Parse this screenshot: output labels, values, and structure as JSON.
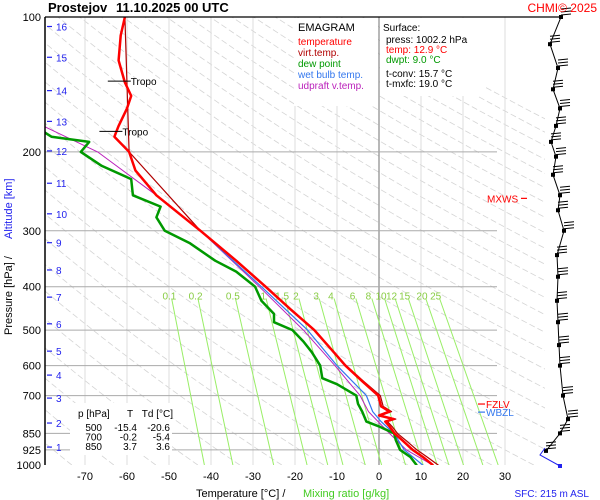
{
  "header": {
    "station": "Prostejov",
    "datetime": "11.10.2025 00 UTC",
    "copyright": "CHMI© 2025"
  },
  "legend": {
    "title": "EMAGRAM",
    "items": [
      {
        "label": "temperature",
        "color": "#ff0000"
      },
      {
        "label": "virt.temp.",
        "color": "#b00000"
      },
      {
        "label": "dew point",
        "color": "#009900"
      },
      {
        "label": "wet bulb temp.",
        "color": "#3377ee"
      },
      {
        "label": "udpraft v.temp.",
        "color": "#bb22bb"
      }
    ]
  },
  "surface": {
    "title": "Surface:",
    "press": "press: 1002.2 hPa",
    "temp": "temp: 12.9 °C",
    "dwpt": "dwpt: 9.0 °C",
    "tconv": "t-conv: 15.7 °C",
    "tmxfc": "t-mxfc: 19.0 °C"
  },
  "table": {
    "headers": [
      "p [hPa]",
      "T",
      "Td [°C]"
    ],
    "rows": [
      [
        "500",
        "-15.4",
        "-20.6"
      ],
      [
        "700",
        "-0.2",
        "-5.4"
      ],
      [
        "850",
        "3.7",
        "3.6"
      ]
    ]
  },
  "axes": {
    "xlabel": "Temperature [°C]  /",
    "xlabel2": "Mixing ratio [g/kg]",
    "ylabel": "Pressure [hPa]  /",
    "ylabel2": "Altitude [km]",
    "sfc": "SFC: 215 m ASL"
  },
  "markers": [
    {
      "label": "MXWS",
      "p": 254,
      "color": "#ff0000"
    },
    {
      "label": "FZLV",
      "p": 731,
      "color": "#ff0000"
    },
    {
      "label": "WBZL",
      "p": 762,
      "color": "#3377ee"
    }
  ],
  "tropo": [
    {
      "label": "Tropo",
      "p": 180,
      "T": -63
    },
    {
      "label": "Tropo",
      "p": 139,
      "T": -61
    }
  ],
  "chart_data": {
    "type": "line",
    "title": "EMAGRAM",
    "xlabel": "Temperature [°C]",
    "ylabel": "Pressure [hPa]",
    "xlim": [
      -80,
      40
    ],
    "ylim": [
      1000,
      100
    ],
    "xticks": [
      -70,
      -60,
      -50,
      -40,
      -30,
      -20,
      -10,
      0,
      10,
      20,
      30
    ],
    "yticks": [
      100,
      200,
      300,
      400,
      500,
      600,
      700,
      850,
      925,
      1000
    ],
    "altitude_ticks": [
      {
        "km": 1,
        "p": 912
      },
      {
        "km": 2,
        "p": 806
      },
      {
        "km": 3,
        "p": 709
      },
      {
        "km": 4,
        "p": 630
      },
      {
        "km": 5,
        "p": 557
      },
      {
        "km": 6,
        "p": 484
      },
      {
        "km": 7,
        "p": 422
      },
      {
        "km": 8,
        "p": 367
      },
      {
        "km": 9,
        "p": 319
      },
      {
        "km": 10,
        "p": 275
      },
      {
        "km": 11,
        "p": 235
      },
      {
        "km": 12,
        "p": 199
      },
      {
        "km": 13,
        "p": 171
      },
      {
        "km": 14,
        "p": 146
      },
      {
        "km": 15,
        "p": 123
      },
      {
        "km": 16,
        "p": 105
      }
    ],
    "mixing_ratios": [
      "0.1",
      "0.2",
      "0.5",
      "1",
      "1.5",
      "2",
      "3",
      "4",
      "6",
      "8",
      "10",
      "12",
      "15",
      "20",
      "25"
    ],
    "series": [
      {
        "name": "temperature",
        "color": "#ff0000",
        "points": [
          [
            1002,
            12.9
          ],
          [
            960,
            10.5
          ],
          [
            925,
            8
          ],
          [
            880,
            5.5
          ],
          [
            850,
            3.7
          ],
          [
            820,
            2.5
          ],
          [
            800,
            1.5
          ],
          [
            790,
            3.5
          ],
          [
            775,
            0
          ],
          [
            760,
            2.5
          ],
          [
            740,
            0.5
          ],
          [
            700,
            -0.2
          ],
          [
            650,
            -4
          ],
          [
            600,
            -8
          ],
          [
            550,
            -11.5
          ],
          [
            500,
            -15.4
          ],
          [
            450,
            -21
          ],
          [
            400,
            -27
          ],
          [
            350,
            -34
          ],
          [
            300,
            -42.5
          ],
          [
            250,
            -53
          ],
          [
            220,
            -58
          ],
          [
            200,
            -59.5
          ],
          [
            185,
            -63
          ],
          [
            175,
            -62
          ],
          [
            160,
            -60
          ],
          [
            150,
            -59
          ],
          [
            140,
            -60.5
          ],
          [
            125,
            -62
          ],
          [
            110,
            -61.5
          ],
          [
            100,
            -60.5
          ]
        ]
      },
      {
        "name": "virt.temp.",
        "color": "#b00000",
        "points": [
          [
            1002,
            14.2
          ],
          [
            960,
            11.5
          ],
          [
            925,
            9
          ],
          [
            880,
            6.3
          ],
          [
            850,
            4.4
          ],
          [
            820,
            3.1
          ],
          [
            800,
            2
          ],
          [
            790,
            4
          ],
          [
            775,
            0.5
          ],
          [
            760,
            3
          ],
          [
            740,
            1
          ],
          [
            700,
            0.3
          ],
          [
            650,
            -3.7
          ],
          [
            600,
            -7.8
          ],
          [
            500,
            -15.3
          ],
          [
            400,
            -27
          ],
          [
            300,
            -42.5
          ],
          [
            200,
            -59.5
          ],
          [
            100,
            -60.5
          ]
        ]
      },
      {
        "name": "dew point",
        "color": "#009900",
        "points": [
          [
            1002,
            9
          ],
          [
            960,
            7.5
          ],
          [
            925,
            5
          ],
          [
            880,
            4
          ],
          [
            850,
            3.6
          ],
          [
            820,
            0
          ],
          [
            800,
            -3
          ],
          [
            760,
            -4
          ],
          [
            730,
            -5
          ],
          [
            700,
            -5.4
          ],
          [
            660,
            -10
          ],
          [
            640,
            -13.5
          ],
          [
            600,
            -14
          ],
          [
            560,
            -16
          ],
          [
            530,
            -18
          ],
          [
            500,
            -20.6
          ],
          [
            480,
            -25
          ],
          [
            460,
            -25
          ],
          [
            430,
            -28
          ],
          [
            400,
            -29.5
          ],
          [
            370,
            -34
          ],
          [
            350,
            -39
          ],
          [
            320,
            -45
          ],
          [
            300,
            -51
          ],
          [
            280,
            -53
          ],
          [
            265,
            -52
          ],
          [
            250,
            -58.6
          ],
          [
            230,
            -59
          ],
          [
            215,
            -66
          ],
          [
            200,
            -71
          ],
          [
            190,
            -69
          ],
          [
            185,
            -78
          ],
          [
            180,
            -80
          ]
        ]
      },
      {
        "name": "wet bulb temp.",
        "color": "#3377ee",
        "points": [
          [
            1002,
            10.5
          ],
          [
            925,
            6
          ],
          [
            850,
            3.6
          ],
          [
            800,
            0.5
          ],
          [
            760,
            -1.5
          ],
          [
            700,
            -3
          ],
          [
            600,
            -10
          ],
          [
            500,
            -17
          ],
          [
            400,
            -28
          ],
          [
            300,
            -42.5
          ],
          [
            250,
            -53
          ]
        ]
      },
      {
        "name": "udpraft v.temp.",
        "color": "#bb22bb",
        "points": [
          [
            1002,
            12.9
          ],
          [
            925,
            6.5
          ],
          [
            850,
            2.5
          ],
          [
            760,
            -2.5
          ],
          [
            700,
            -4.5
          ],
          [
            600,
            -10.5
          ],
          [
            500,
            -18
          ],
          [
            400,
            -28.5
          ],
          [
            300,
            -42.5
          ],
          [
            250,
            -53
          ],
          [
            200,
            -67
          ],
          [
            175,
            -80
          ]
        ]
      }
    ]
  }
}
